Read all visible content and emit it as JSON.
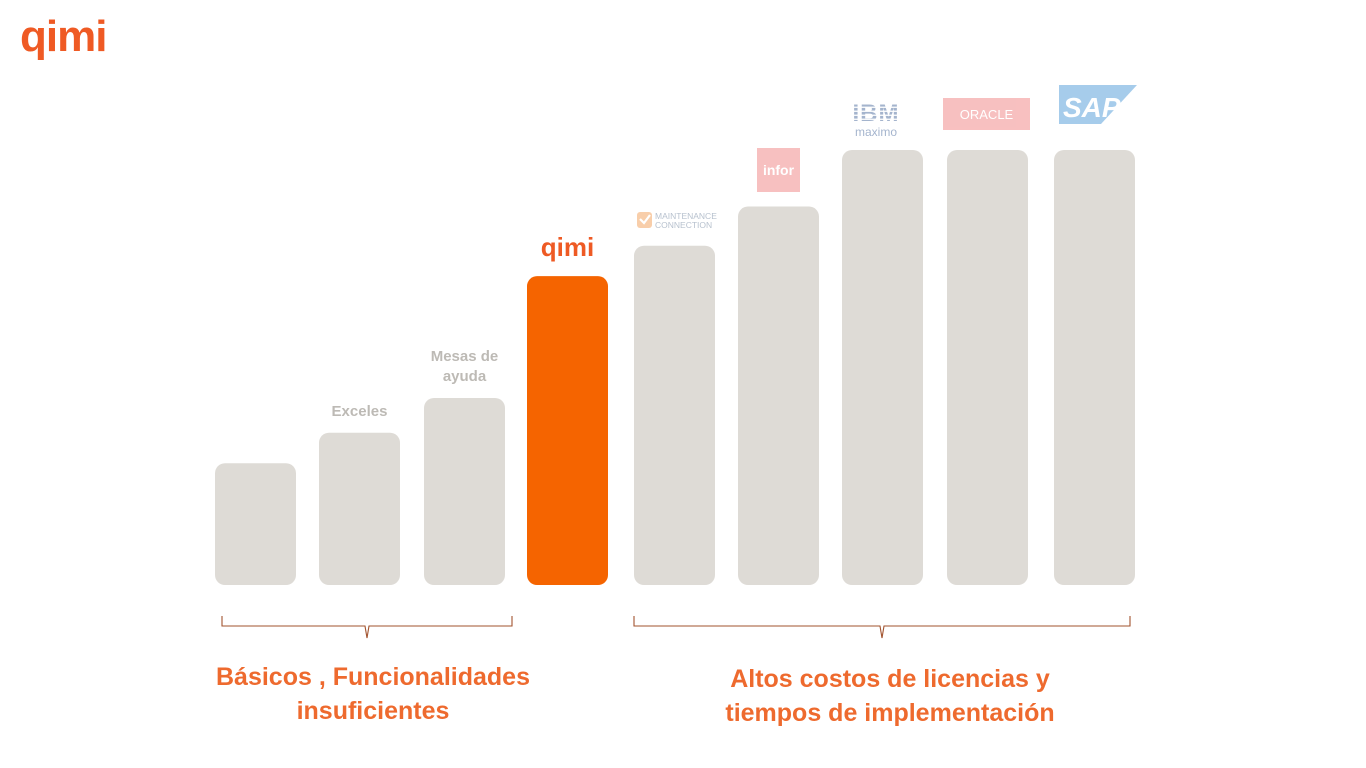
{
  "header": {
    "brand": "qimi"
  },
  "chart_data": {
    "type": "bar",
    "categories": [
      "",
      "Exceles",
      "Mesas de ayuda",
      "qimi",
      "Maintenance Connection",
      "infor",
      "IBM maximo",
      "ORACLE",
      "SAP"
    ],
    "labels": [
      {
        "lines": []
      },
      {
        "lines": [
          "Exceles"
        ]
      },
      {
        "lines": [
          "Mesas de",
          "ayuda"
        ]
      },
      {
        "lines": [
          "qimi"
        ],
        "highlight": true
      },
      {
        "logo": "maintenance-connection",
        "lines": [
          "MAINTENANCE",
          "CONNECTION"
        ]
      },
      {
        "logo": "infor",
        "lines": [
          "infor"
        ]
      },
      {
        "logo": "ibm-maximo",
        "lines": [
          "IBM",
          "maximo"
        ]
      },
      {
        "logo": "oracle",
        "lines": [
          "ORACLE"
        ]
      },
      {
        "logo": "sap",
        "lines": [
          "SAP"
        ]
      }
    ],
    "values": [
      28,
      35,
      43,
      71,
      78,
      87,
      100,
      100,
      100
    ],
    "highlight_index": 3,
    "ylim": [
      0,
      100
    ],
    "colors": {
      "bar": "#dedbd6",
      "highlight": "#f56400",
      "label": "#bdbab5",
      "accent": "#ee5a24"
    },
    "groups": [
      {
        "text_lines": [
          "Básicos , Funcionalidades",
          "insuficientes"
        ],
        "from_index": 0,
        "to_index": 2
      },
      {
        "text_lines": [
          "Altos costos de licencias  y",
          "tiempos de implementación"
        ],
        "from_index": 4,
        "to_index": 8
      }
    ]
  }
}
